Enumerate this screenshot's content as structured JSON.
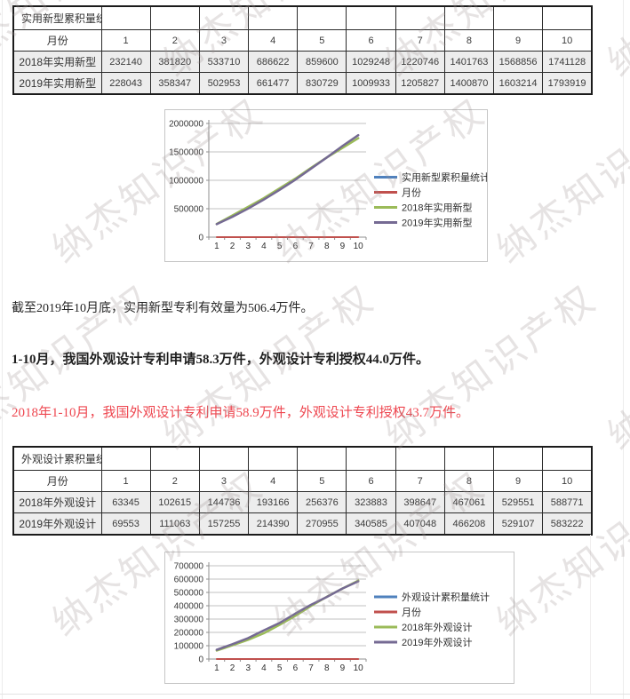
{
  "page": {
    "watermark_text": "纳杰知识产权"
  },
  "table1": {
    "title": "实用新型累积量统计",
    "month_label": "月份",
    "months": [
      "1",
      "2",
      "3",
      "4",
      "5",
      "6",
      "7",
      "8",
      "9",
      "10"
    ],
    "rows": [
      {
        "label": "2018年实用新型",
        "values": [
          "232140",
          "381820",
          "533710",
          "686622",
          "859600",
          "1029248",
          "1220746",
          "1401763",
          "1568856",
          "1741128"
        ]
      },
      {
        "label": "2019年实用新型",
        "values": [
          "228043",
          "358347",
          "502953",
          "661477",
          "830729",
          "1009933",
          "1205827",
          "1400870",
          "1603214",
          "1793919"
        ]
      }
    ]
  },
  "table2": {
    "title": "外观设计累积量统计",
    "month_label": "月份",
    "months": [
      "1",
      "2",
      "3",
      "4",
      "5",
      "6",
      "7",
      "8",
      "9",
      "10"
    ],
    "rows": [
      {
        "label": "2018年外观设计",
        "values": [
          "63345",
          "102615",
          "144736",
          "193166",
          "256376",
          "323883",
          "398647",
          "467061",
          "529551",
          "588771"
        ]
      },
      {
        "label": "2019年外观设计",
        "values": [
          "69553",
          "111063",
          "157255",
          "214390",
          "270955",
          "340585",
          "407048",
          "466208",
          "529107",
          "583222"
        ]
      }
    ]
  },
  "paragraphs": {
    "p1": "截至2019年10月底，实用新型专利有效量为506.4万件。",
    "p2": "1-10月，我国外观设计专利申请58.3万件，外观设计专利授权44.0万件。",
    "p3": "2018年1-10月，我国外观设计专利申请58.9万件，外观设计专利授权43.7万件。"
  },
  "colors": {
    "series_blue": "#4f81bd",
    "series_red": "#c0504d",
    "series_green": "#9bbb59",
    "series_purple": "#756a93",
    "red_text": "#ee4750"
  },
  "chart_data": [
    {
      "type": "line",
      "title": "",
      "x": [
        1,
        2,
        3,
        4,
        5,
        6,
        7,
        8,
        9,
        10
      ],
      "ylim": [
        0,
        2000000
      ],
      "yticks": [
        0,
        500000,
        1000000,
        1500000,
        2000000
      ],
      "grid": true,
      "legend_position": "right",
      "series": [
        {
          "name": "实用新型累积量统计",
          "color": "#4f81bd",
          "values": []
        },
        {
          "name": "月份",
          "color": "#c0504d",
          "values": [
            1,
            2,
            3,
            4,
            5,
            6,
            7,
            8,
            9,
            10
          ]
        },
        {
          "name": "2018年实用新型",
          "color": "#9bbb59",
          "values": [
            232140,
            381820,
            533710,
            686622,
            859600,
            1029248,
            1220746,
            1401763,
            1568856,
            1741128
          ]
        },
        {
          "name": "2019年实用新型",
          "color": "#756a93",
          "values": [
            228043,
            358347,
            502953,
            661477,
            830729,
            1009933,
            1205827,
            1400870,
            1603214,
            1793919
          ]
        }
      ]
    },
    {
      "type": "line",
      "title": "",
      "x": [
        1,
        2,
        3,
        4,
        5,
        6,
        7,
        8,
        9,
        10
      ],
      "ylim": [
        0,
        700000
      ],
      "yticks": [
        0,
        100000,
        200000,
        300000,
        400000,
        500000,
        600000,
        700000
      ],
      "grid": true,
      "legend_position": "right",
      "series": [
        {
          "name": "外观设计累积量统计",
          "color": "#4f81bd",
          "values": []
        },
        {
          "name": "月份",
          "color": "#c0504d",
          "values": [
            1,
            2,
            3,
            4,
            5,
            6,
            7,
            8,
            9,
            10
          ]
        },
        {
          "name": "2018年外观设计",
          "color": "#9bbb59",
          "values": [
            63345,
            102615,
            144736,
            193166,
            256376,
            323883,
            398647,
            467061,
            529551,
            588771
          ]
        },
        {
          "name": "2019年外观设计",
          "color": "#756a93",
          "values": [
            69553,
            111063,
            157255,
            214390,
            270955,
            340585,
            407048,
            466208,
            529107,
            583222
          ]
        }
      ]
    }
  ]
}
